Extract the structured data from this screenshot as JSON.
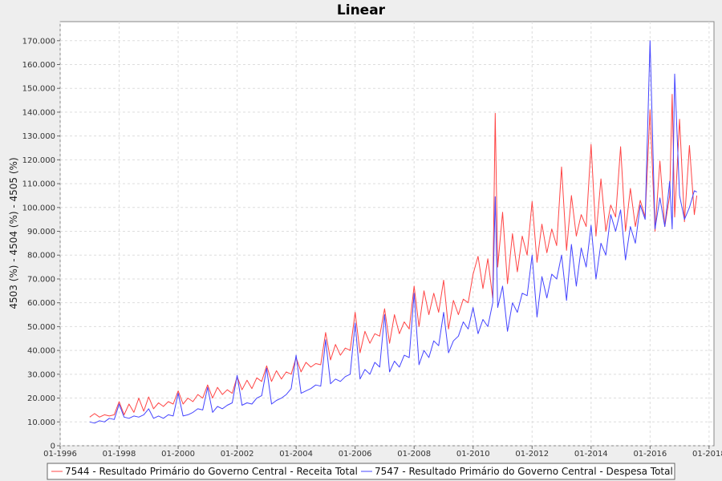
{
  "chart_data": {
    "type": "line",
    "title": "Linear",
    "xlabel": "",
    "ylabel": "4503 (%) - 4504 (%) - 4505 (%)",
    "xlim": [
      "1996-01",
      "2018-03"
    ],
    "ylim": [
      0,
      178000
    ],
    "x_ticks": [
      "01-1996",
      "01-1998",
      "01-2000",
      "01-2002",
      "01-2004",
      "01-2006",
      "01-2008",
      "01-2010",
      "01-2012",
      "01-2014",
      "01-2016",
      "01-2018"
    ],
    "y_ticks": [
      0,
      10000,
      20000,
      30000,
      40000,
      50000,
      60000,
      70000,
      80000,
      90000,
      100000,
      110000,
      120000,
      130000,
      140000,
      150000,
      160000,
      170000
    ],
    "y_tick_labels": [
      "0",
      "10.000",
      "20.000",
      "30.000",
      "40.000",
      "50.000",
      "60.000",
      "70.000",
      "80.000",
      "90.000",
      "100.000",
      "110.000",
      "120.000",
      "130.000",
      "140.000",
      "150.000",
      "160.000",
      "170.000"
    ],
    "grid": true,
    "legend_position": "bottom",
    "series": [
      {
        "name": "7544 - Resultado Primário do Governo Central - Receita Total",
        "color": "#ff4444",
        "points": [
          [
            "1997-01",
            12000
          ],
          [
            "1997-03",
            13500
          ],
          [
            "1997-05",
            12000
          ],
          [
            "1997-07",
            13000
          ],
          [
            "1997-09",
            12500
          ],
          [
            "1997-11",
            13000
          ],
          [
            "1998-01",
            18500
          ],
          [
            "1998-03",
            13000
          ],
          [
            "1998-05",
            17500
          ],
          [
            "1998-07",
            14000
          ],
          [
            "1998-09",
            20000
          ],
          [
            "1998-11",
            14500
          ],
          [
            "1999-01",
            20500
          ],
          [
            "1999-03",
            15500
          ],
          [
            "1999-05",
            18000
          ],
          [
            "1999-07",
            16500
          ],
          [
            "1999-09",
            18500
          ],
          [
            "1999-11",
            17500
          ],
          [
            "2000-01",
            23000
          ],
          [
            "2000-03",
            17500
          ],
          [
            "2000-05",
            20000
          ],
          [
            "2000-07",
            18500
          ],
          [
            "2000-09",
            21500
          ],
          [
            "2000-11",
            20000
          ],
          [
            "2001-01",
            25500
          ],
          [
            "2001-03",
            20000
          ],
          [
            "2001-05",
            24500
          ],
          [
            "2001-07",
            21500
          ],
          [
            "2001-09",
            23500
          ],
          [
            "2001-11",
            22000
          ],
          [
            "2002-01",
            29000
          ],
          [
            "2002-03",
            23500
          ],
          [
            "2002-05",
            27500
          ],
          [
            "2002-07",
            24000
          ],
          [
            "2002-09",
            28500
          ],
          [
            "2002-11",
            27000
          ],
          [
            "2003-01",
            33500
          ],
          [
            "2003-03",
            27000
          ],
          [
            "2003-05",
            31500
          ],
          [
            "2003-07",
            28000
          ],
          [
            "2003-09",
            31000
          ],
          [
            "2003-11",
            30000
          ],
          [
            "2004-01",
            37000
          ],
          [
            "2004-03",
            31000
          ],
          [
            "2004-05",
            35000
          ],
          [
            "2004-07",
            33000
          ],
          [
            "2004-09",
            34500
          ],
          [
            "2004-11",
            34000
          ],
          [
            "2005-01",
            47500
          ],
          [
            "2005-03",
            36000
          ],
          [
            "2005-05",
            42500
          ],
          [
            "2005-07",
            38000
          ],
          [
            "2005-09",
            41000
          ],
          [
            "2005-11",
            40000
          ],
          [
            "2006-01",
            56000
          ],
          [
            "2006-03",
            39000
          ],
          [
            "2006-05",
            48000
          ],
          [
            "2006-07",
            43000
          ],
          [
            "2006-09",
            47000
          ],
          [
            "2006-11",
            46000
          ],
          [
            "2007-01",
            57500
          ],
          [
            "2007-03",
            43000
          ],
          [
            "2007-05",
            55000
          ],
          [
            "2007-07",
            47000
          ],
          [
            "2007-09",
            52000
          ],
          [
            "2007-11",
            49000
          ],
          [
            "2008-01",
            67000
          ],
          [
            "2008-03",
            50000
          ],
          [
            "2008-05",
            65000
          ],
          [
            "2008-07",
            55000
          ],
          [
            "2008-09",
            64000
          ],
          [
            "2008-11",
            56000
          ],
          [
            "2009-01",
            69500
          ],
          [
            "2009-03",
            49000
          ],
          [
            "2009-05",
            61000
          ],
          [
            "2009-07",
            55000
          ],
          [
            "2009-09",
            61500
          ],
          [
            "2009-11",
            60000
          ],
          [
            "2010-01",
            72000
          ],
          [
            "2010-03",
            79500
          ],
          [
            "2010-05",
            66000
          ],
          [
            "2010-07",
            78500
          ],
          [
            "2010-09",
            62000
          ],
          [
            "2010-10",
            139500
          ],
          [
            "2010-11",
            75000
          ],
          [
            "2011-01",
            98000
          ],
          [
            "2011-03",
            68000
          ],
          [
            "2011-05",
            89000
          ],
          [
            "2011-07",
            73000
          ],
          [
            "2011-09",
            88000
          ],
          [
            "2011-11",
            80000
          ],
          [
            "2012-01",
            102500
          ],
          [
            "2012-03",
            77000
          ],
          [
            "2012-05",
            93000
          ],
          [
            "2012-07",
            81000
          ],
          [
            "2012-09",
            91000
          ],
          [
            "2012-11",
            84000
          ],
          [
            "2013-01",
            117000
          ],
          [
            "2013-03",
            82000
          ],
          [
            "2013-05",
            105000
          ],
          [
            "2013-07",
            88000
          ],
          [
            "2013-09",
            97000
          ],
          [
            "2013-11",
            92000
          ],
          [
            "2014-01",
            126500
          ],
          [
            "2014-03",
            88000
          ],
          [
            "2014-05",
            112000
          ],
          [
            "2014-07",
            90000
          ],
          [
            "2014-09",
            101000
          ],
          [
            "2014-11",
            96000
          ],
          [
            "2015-01",
            125500
          ],
          [
            "2015-03",
            90000
          ],
          [
            "2015-05",
            108000
          ],
          [
            "2015-07",
            92000
          ],
          [
            "2015-09",
            103000
          ],
          [
            "2015-11",
            96000
          ],
          [
            "2016-01",
            141000
          ],
          [
            "2016-03",
            90000
          ],
          [
            "2016-05",
            119500
          ],
          [
            "2016-07",
            92000
          ],
          [
            "2016-09",
            105000
          ],
          [
            "2016-10",
            147500
          ],
          [
            "2016-11",
            96000
          ],
          [
            "2017-01",
            137000
          ],
          [
            "2017-03",
            94000
          ],
          [
            "2017-05",
            126000
          ],
          [
            "2017-07",
            97000
          ],
          [
            "2017-08",
            105000
          ]
        ]
      },
      {
        "name": "7547 - Resultado Primário do Governo Central - Despesa Total",
        "color": "#4444ff",
        "points": [
          [
            "1997-01",
            10000
          ],
          [
            "1997-03",
            9500
          ],
          [
            "1997-05",
            10500
          ],
          [
            "1997-07",
            10000
          ],
          [
            "1997-09",
            11500
          ],
          [
            "1997-11",
            11000
          ],
          [
            "1998-01",
            17500
          ],
          [
            "1998-03",
            12000
          ],
          [
            "1998-05",
            11500
          ],
          [
            "1998-07",
            12500
          ],
          [
            "1998-09",
            12000
          ],
          [
            "1998-11",
            13000
          ],
          [
            "1999-01",
            15500
          ],
          [
            "1999-03",
            11500
          ],
          [
            "1999-05",
            12500
          ],
          [
            "1999-07",
            11500
          ],
          [
            "1999-09",
            13000
          ],
          [
            "1999-11",
            12500
          ],
          [
            "2000-01",
            22000
          ],
          [
            "2000-03",
            12500
          ],
          [
            "2000-05",
            13000
          ],
          [
            "2000-07",
            14000
          ],
          [
            "2000-09",
            15500
          ],
          [
            "2000-11",
            15000
          ],
          [
            "2001-01",
            24500
          ],
          [
            "2001-03",
            14000
          ],
          [
            "2001-05",
            16500
          ],
          [
            "2001-07",
            15500
          ],
          [
            "2001-09",
            17000
          ],
          [
            "2001-11",
            18000
          ],
          [
            "2002-01",
            29500
          ],
          [
            "2002-03",
            17000
          ],
          [
            "2002-05",
            18000
          ],
          [
            "2002-07",
            17500
          ],
          [
            "2002-09",
            20000
          ],
          [
            "2002-11",
            21000
          ],
          [
            "2003-01",
            32500
          ],
          [
            "2003-03",
            17500
          ],
          [
            "2003-05",
            19000
          ],
          [
            "2003-07",
            20000
          ],
          [
            "2003-09",
            21500
          ],
          [
            "2003-11",
            24000
          ],
          [
            "2004-01",
            38000
          ],
          [
            "2004-03",
            22000
          ],
          [
            "2004-05",
            23000
          ],
          [
            "2004-07",
            24000
          ],
          [
            "2004-09",
            25500
          ],
          [
            "2004-11",
            25000
          ],
          [
            "2005-01",
            44500
          ],
          [
            "2005-03",
            26000
          ],
          [
            "2005-05",
            28000
          ],
          [
            "2005-07",
            27000
          ],
          [
            "2005-09",
            29000
          ],
          [
            "2005-11",
            30000
          ],
          [
            "2006-01",
            51500
          ],
          [
            "2006-03",
            28000
          ],
          [
            "2006-05",
            32000
          ],
          [
            "2006-07",
            30000
          ],
          [
            "2006-09",
            35000
          ],
          [
            "2006-11",
            33000
          ],
          [
            "2007-01",
            55000
          ],
          [
            "2007-03",
            31000
          ],
          [
            "2007-05",
            35500
          ],
          [
            "2007-07",
            33000
          ],
          [
            "2007-09",
            38000
          ],
          [
            "2007-11",
            37000
          ],
          [
            "2008-01",
            64000
          ],
          [
            "2008-03",
            34000
          ],
          [
            "2008-05",
            40000
          ],
          [
            "2008-07",
            37000
          ],
          [
            "2008-09",
            44000
          ],
          [
            "2008-11",
            42000
          ],
          [
            "2009-01",
            56000
          ],
          [
            "2009-03",
            39000
          ],
          [
            "2009-05",
            44000
          ],
          [
            "2009-07",
            46000
          ],
          [
            "2009-09",
            52000
          ],
          [
            "2009-11",
            49000
          ],
          [
            "2010-01",
            58000
          ],
          [
            "2010-03",
            47000
          ],
          [
            "2010-05",
            53000
          ],
          [
            "2010-07",
            50000
          ],
          [
            "2010-09",
            60000
          ],
          [
            "2010-10",
            104500
          ],
          [
            "2010-11",
            58000
          ],
          [
            "2011-01",
            67000
          ],
          [
            "2011-03",
            48000
          ],
          [
            "2011-05",
            60000
          ],
          [
            "2011-07",
            56000
          ],
          [
            "2011-09",
            64000
          ],
          [
            "2011-11",
            63000
          ],
          [
            "2012-01",
            80000
          ],
          [
            "2012-03",
            54000
          ],
          [
            "2012-05",
            71000
          ],
          [
            "2012-07",
            62000
          ],
          [
            "2012-09",
            72000
          ],
          [
            "2012-11",
            70000
          ],
          [
            "2013-01",
            80000
          ],
          [
            "2013-03",
            61000
          ],
          [
            "2013-05",
            84500
          ],
          [
            "2013-07",
            67000
          ],
          [
            "2013-09",
            83000
          ],
          [
            "2013-11",
            75000
          ],
          [
            "2014-01",
            92500
          ],
          [
            "2014-03",
            70000
          ],
          [
            "2014-05",
            85000
          ],
          [
            "2014-07",
            80000
          ],
          [
            "2014-09",
            97000
          ],
          [
            "2014-11",
            90000
          ],
          [
            "2015-01",
            99000
          ],
          [
            "2015-03",
            78000
          ],
          [
            "2015-05",
            92000
          ],
          [
            "2015-07",
            85000
          ],
          [
            "2015-09",
            101000
          ],
          [
            "2015-11",
            95000
          ],
          [
            "2016-01",
            170000
          ],
          [
            "2016-03",
            91000
          ],
          [
            "2016-05",
            104000
          ],
          [
            "2016-07",
            92000
          ],
          [
            "2016-09",
            111000
          ],
          [
            "2016-10",
            91000
          ],
          [
            "2016-11",
            156000
          ],
          [
            "2017-01",
            105000
          ],
          [
            "2017-03",
            95000
          ],
          [
            "2017-05",
            100000
          ],
          [
            "2017-07",
            107000
          ],
          [
            "2017-08",
            106500
          ]
        ]
      }
    ]
  }
}
